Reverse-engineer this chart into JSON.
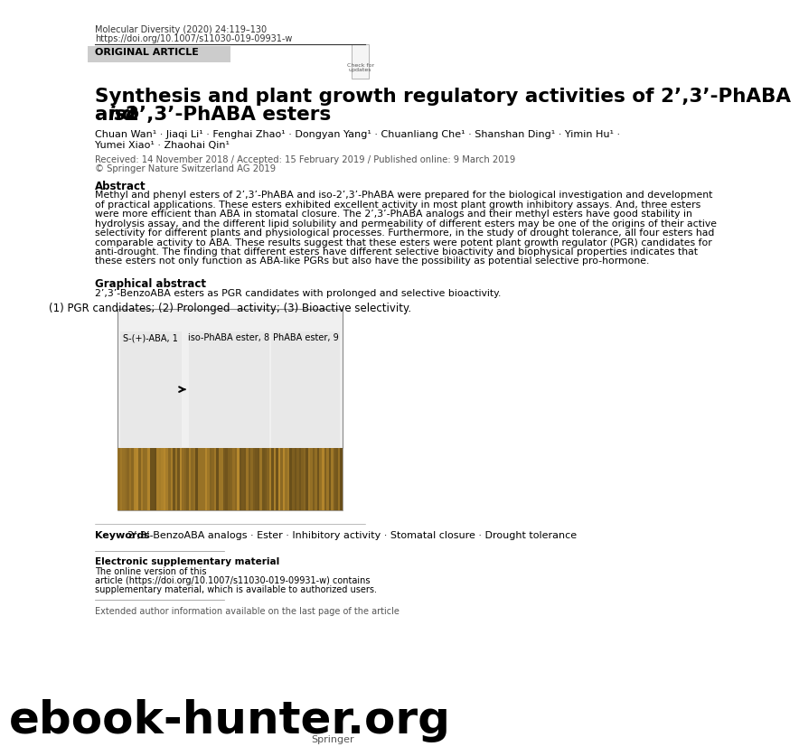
{
  "bg_color": "#ffffff",
  "header_line1": "Molecular Diversity (2020) 24:119–130",
  "header_line2": "https://doi.org/10.1007/s11030-019-09931-w",
  "original_article_label": "ORIGINAL ARTICLE",
  "original_article_bg": "#cccccc",
  "title_line1": "Synthesis and plant growth regulatory activities of 2’,3’-PhABA",
  "title_line2": "and ",
  "title_line2_italic": "iso",
  "title_line2_rest": "-2’,3’-PhABA esters",
  "authors_line1": "Chuan Wan¹ · Jiaqi Li¹ · Fenghai Zhao¹ · Dongyan Yang¹ · Chuanliang Che¹ · Shanshan Ding¹ · Yimin Hu¹ ·",
  "authors_line2": "Yumei Xiao¹ · Zhaohai Qin¹",
  "received": "Received: 14 November 2018 / Accepted: 15 February 2019 / Published online: 9 March 2019",
  "copyright": "© Springer Nature Switzerland AG 2019",
  "abstract_title": "Abstract",
  "abstract_text": "Methyl and phenyl esters of 2’,3’-PhABA and iso-2’,3’-PhABA were prepared for the biological investigation and development\nof practical applications. These esters exhibited excellent activity in most plant growth inhibitory assays. And, three esters\nwere more efficient than ABA in stomatal closure. The 2’,3’-PhABA analogs and their methyl esters have good stability in\nhydrolysis assay, and the different lipid solubility and permeability of different esters may be one of the origins of their active\nselectivity for different plants and physiological processes. Furthermore, in the study of drought tolerance, all four esters had\ncomparable activity to ABA. These results suggest that these esters were potent plant growth regulator (PGR) candidates for\nanti-drought. The finding that different esters have different selective bioactivity and biophysical properties indicates that\nthese esters not only function as ABA-like PGRs but also have the possibility as potential selective pro-hormone.",
  "graphical_abstract_title": "Graphical abstract",
  "graphical_abstract_text": "2’,3’-BenzoABA esters as PGR candidates with prolonged and selective bioactivity.",
  "graphical_caption": "(1) PGR candidates; (2) Prolonged  activity; (3) Bioactive selectivity.",
  "keywords_label": "Keywords",
  "keywords_text": "2’,3’-BenzoABA analogs · Ester · Inhibitory activity · Stomatal closure · Drought tolerance",
  "esm_title": "Electronic supplementary material",
  "esm_text": "The online version of this\narticle (https://doi.org/10.1007/s11030-019-09931-w) contains\nsupplementary material, which is available to authorized users.",
  "extended_author": "Extended author information available on the last page of the article",
  "watermark": "ebook-hunter.org",
  "springer_text": "Springer",
  "image_placeholder_color": "#e8e8e8",
  "image_box_border": "#888888"
}
